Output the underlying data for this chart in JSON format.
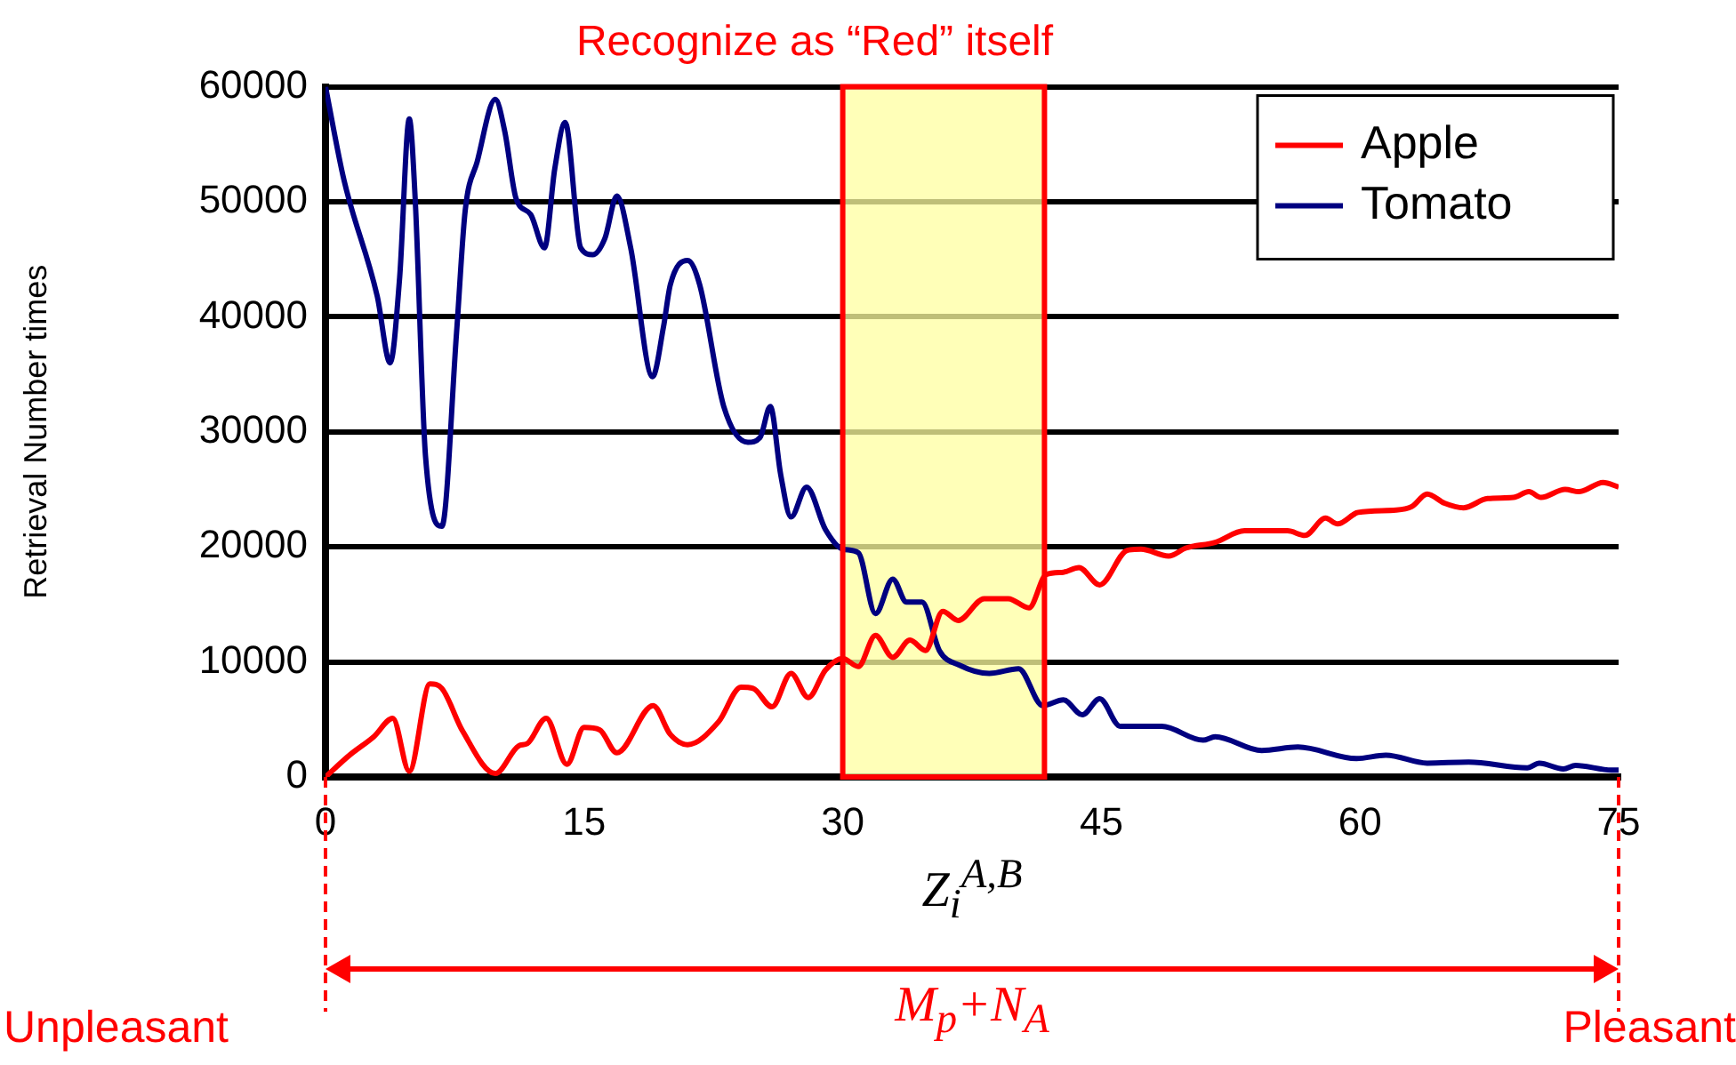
{
  "chart_data": {
    "type": "line",
    "title": "Recognize as “Red” itself",
    "xlabel": "Z$_{i}$$^{A,B}$",
    "ylabel": "Retrieval Number times",
    "xlim": [
      0,
      75
    ],
    "xticks": [
      0,
      15,
      30,
      45,
      60,
      75
    ],
    "ylim": [
      0,
      60000
    ],
    "yticks": [
      0,
      10000,
      20000,
      30000,
      40000,
      50000,
      60000
    ],
    "grid": "y",
    "legend": "top right",
    "marker": "none",
    "line_style": "solid",
    "bands": [
      {
        "axis": "x",
        "from": 30,
        "to": 41.7,
        "color": "#ffffa0"
      }
    ],
    "annotations": [
      "Unpleasant",
      "M$_{p}$+N$_{A}$",
      "Pleasant"
    ],
    "series": [
      {
        "name": "Apple",
        "color": "#ff0000",
        "x": [
          0,
          1.4,
          2.8,
          3.9,
          4.86,
          6.06,
          6.75,
          7.95,
          9.85,
          11.2,
          11.7,
          12.8,
          14,
          15,
          15.9,
          16.9,
          19,
          20,
          21,
          22.8,
          24.1,
          24.8,
          25.9,
          27,
          28,
          29,
          30,
          30.9,
          31.9,
          32.9,
          33.9,
          34.8,
          35.8,
          36.7,
          38.2,
          39.6,
          40.8,
          41.8,
          42.8,
          43.7,
          44.9,
          46.5,
          47.3,
          48.9,
          49.9,
          51.6,
          53.3,
          55.8,
          56.8,
          58,
          58.7,
          59.9,
          62.1,
          63,
          63.9,
          64.9,
          66,
          67.4,
          68.9,
          69.8,
          70.5,
          71.9,
          72.7,
          74.1,
          75
        ],
        "values": [
          0,
          1900,
          3500,
          5100,
          500,
          8100,
          7700,
          4000,
          300,
          2700,
          2900,
          5100,
          1100,
          4300,
          4100,
          2100,
          6200,
          3700,
          2800,
          4800,
          7800,
          7700,
          6100,
          9000,
          6900,
          9300,
          10300,
          9600,
          12300,
          10400,
          11900,
          11000,
          14400,
          13600,
          15500,
          15500,
          14700,
          17600,
          17800,
          18200,
          16700,
          19700,
          19800,
          19200,
          19900,
          20400,
          21400,
          21400,
          21000,
          22500,
          22000,
          23000,
          23200,
          23500,
          24600,
          23800,
          23400,
          24200,
          24300,
          24800,
          24300,
          25000,
          24800,
          25600,
          25200
        ]
      },
      {
        "name": "Tomato",
        "color": "#000080",
        "x": [
          0,
          1.07,
          3,
          3.75,
          4.3,
          4.86,
          5.2,
          5.8,
          6.75,
          7.6,
          8.1,
          8.8,
          9.85,
          10.4,
          11.05,
          11.9,
          12.7,
          13.3,
          13.9,
          14.8,
          15.5,
          16.2,
          16.9,
          17.7,
          18.97,
          19.6,
          20,
          21,
          21.7,
          23.1,
          24.5,
          25.2,
          25.8,
          26.4,
          27,
          27.9,
          29,
          30,
          30.9,
          31.9,
          32.9,
          33.7,
          34.6,
          35.6,
          36.8,
          38.5,
          40.2,
          41.6,
          42.8,
          43.9,
          44.9,
          46.1,
          48.5,
          50.9,
          51.6,
          54.3,
          56.4,
          59.8,
          61.5,
          63.9,
          66.3,
          69.7,
          70.4,
          71.8,
          72.5,
          74.6,
          75
        ],
        "values": [
          60000,
          51900,
          41800,
          36000,
          43400,
          57200,
          50300,
          27900,
          21800,
          38600,
          49200,
          53500,
          58900,
          56100,
          50300,
          48900,
          46000,
          52900,
          56900,
          46000,
          45400,
          46800,
          50500,
          46000,
          34800,
          39100,
          42800,
          44900,
          42800,
          32200,
          29100,
          29500,
          32200,
          26300,
          22600,
          25200,
          21500,
          19800,
          19500,
          14200,
          17200,
          15200,
          15200,
          11000,
          9700,
          9000,
          9400,
          6200,
          6700,
          5400,
          6800,
          4400,
          4400,
          3200,
          3500,
          2300,
          2600,
          1600,
          1900,
          1200,
          1300,
          800,
          1200,
          700,
          1000,
          600,
          600
        ]
      }
    ]
  }
}
